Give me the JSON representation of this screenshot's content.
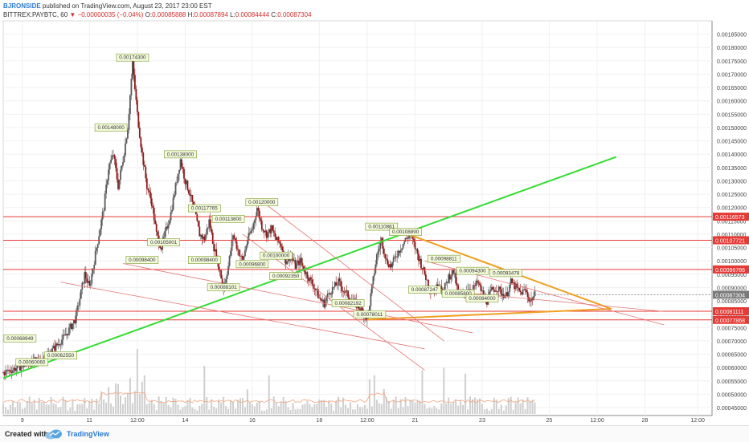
{
  "header": {
    "author": "BJRONSIDE",
    "published": "published on TradingView.com, August 23, 2017 23:00 EST",
    "symbol": "BITTREX:PAYBTC, 60",
    "change_arrow": "▼",
    "change": "−0.00000035 (−0.04%)",
    "ohlc": {
      "o_label": "O:",
      "o": "0.00085888",
      "h_label": "H:",
      "h": "0.00087894",
      "l_label": "L:",
      "l": "0.00084444",
      "c_label": "C:",
      "c": "0.00087304"
    }
  },
  "footer": {
    "created": "Created with",
    "brand": "TradingView"
  },
  "colors": {
    "up": "#58595b",
    "down": "#8b1a1a",
    "support": "#e53935",
    "trend": "#33dd33",
    "triangle": "#f0a020",
    "channel": "#e57373",
    "volume": "#cfcfcf",
    "volume_ma": "#f4a582",
    "label_bg": "#f4fbdd",
    "label_border": "#7a9a2a"
  },
  "chart_data": {
    "type": "line",
    "title": "",
    "xlabel": "",
    "ylabel": "",
    "ylim": [
      0.00042,
      0.0019
    ],
    "xlim": [
      0,
      148
    ],
    "price_scale": [
      "0.00185000",
      "0.00180000",
      "0.00175000",
      "0.00170000",
      "0.00165000",
      "0.00160000",
      "0.00155000",
      "0.00150000",
      "0.00145000",
      "0.00140000",
      "0.00135000",
      "0.00130000",
      "0.00125000",
      "0.00120000",
      "0.00115000",
      "0.00110000",
      "0.00105000",
      "0.00100000",
      "0.00095000",
      "0.00090000",
      "0.00085000",
      "0.00080000",
      "0.00075000",
      "0.00070000",
      "0.00065000",
      "0.00060000",
      "0.00055000",
      "0.00050000",
      "0.00045000"
    ],
    "x_ticks": [
      {
        "x": 4,
        "label": "9"
      },
      {
        "x": 18,
        "label": "11"
      },
      {
        "x": 28,
        "label": "12:00"
      },
      {
        "x": 38,
        "label": "14"
      },
      {
        "x": 52,
        "label": "16"
      },
      {
        "x": 66,
        "label": "18"
      },
      {
        "x": 76,
        "label": "12:00"
      },
      {
        "x": 86,
        "label": "21"
      },
      {
        "x": 100,
        "label": "23"
      },
      {
        "x": 114,
        "label": "25"
      },
      {
        "x": 124,
        "label": "12:00"
      },
      {
        "x": 134,
        "label": "28"
      },
      {
        "x": 145,
        "label": "12:00"
      }
    ],
    "price_path": [
      [
        0,
        0.00058
      ],
      [
        3,
        0.0006
      ],
      [
        6,
        0.00062
      ],
      [
        9,
        0.00064
      ],
      [
        11,
        0.00068
      ],
      [
        13,
        0.00072
      ],
      [
        15,
        0.00078
      ],
      [
        16,
        0.00086
      ],
      [
        17,
        0.00095
      ],
      [
        18,
        0.0009
      ],
      [
        19,
        0.001
      ],
      [
        20,
        0.0011
      ],
      [
        21,
        0.0012
      ],
      [
        22,
        0.00135
      ],
      [
        23,
        0.0014
      ],
      [
        24,
        0.00128
      ],
      [
        25,
        0.00138
      ],
      [
        26,
        0.0015
      ],
      [
        27,
        0.00174
      ],
      [
        28,
        0.00155
      ],
      [
        29,
        0.0014
      ],
      [
        30,
        0.00128
      ],
      [
        31,
        0.00122
      ],
      [
        32,
        0.0011
      ],
      [
        33,
        0.00105
      ],
      [
        35,
        0.00118
      ],
      [
        37,
        0.00138
      ],
      [
        38,
        0.0013
      ],
      [
        39,
        0.00125
      ],
      [
        40,
        0.00118
      ],
      [
        41,
        0.0011
      ],
      [
        42,
        0.00108
      ],
      [
        43,
        0.00115
      ],
      [
        44,
        0.00105
      ],
      [
        45,
        0.00098
      ],
      [
        46,
        0.0009
      ],
      [
        47,
        0.00098
      ],
      [
        48,
        0.0011
      ],
      [
        49,
        0.00104
      ],
      [
        50,
        0.001
      ],
      [
        51,
        0.00108
      ],
      [
        52,
        0.00112
      ],
      [
        53,
        0.0012
      ],
      [
        54,
        0.00113
      ],
      [
        55,
        0.0011
      ],
      [
        56,
        0.00112
      ],
      [
        57,
        0.00108
      ],
      [
        58,
        0.00106
      ],
      [
        59,
        0.001
      ],
      [
        60,
        0.00102
      ],
      [
        61,
        0.00098
      ],
      [
        62,
        0.001
      ],
      [
        63,
        0.00096
      ],
      [
        64,
        0.00093
      ],
      [
        65,
        0.0009
      ],
      [
        66,
        0.00086
      ],
      [
        67,
        0.00084
      ],
      [
        68,
        0.00088
      ],
      [
        69,
        0.0009
      ],
      [
        70,
        0.00092
      ],
      [
        71,
        0.00089
      ],
      [
        72,
        0.00087
      ],
      [
        73,
        0.00085
      ],
      [
        74,
        0.00083
      ],
      [
        75,
        0.00081
      ],
      [
        76,
        0.00078
      ],
      [
        77,
        0.0009
      ],
      [
        78,
        0.00102
      ],
      [
        79,
        0.00108
      ],
      [
        80,
        0.001
      ],
      [
        81,
        0.00098
      ],
      [
        82,
        0.00102
      ],
      [
        83,
        0.00105
      ],
      [
        84,
        0.00108
      ],
      [
        85,
        0.0011
      ],
      [
        86,
        0.00105
      ],
      [
        87,
        0.001
      ],
      [
        88,
        0.00095
      ],
      [
        89,
        0.0009
      ],
      [
        90,
        0.00088
      ],
      [
        91,
        0.00092
      ],
      [
        92,
        0.00089
      ],
      [
        93,
        0.00094
      ],
      [
        94,
        0.00096
      ],
      [
        95,
        0.00088
      ],
      [
        96,
        0.00087
      ],
      [
        97,
        0.0009
      ],
      [
        98,
        0.00089
      ],
      [
        99,
        0.00092
      ],
      [
        100,
        0.00088
      ],
      [
        101,
        0.00085
      ],
      [
        102,
        0.00089
      ],
      [
        103,
        0.0009
      ],
      [
        104,
        0.00088
      ],
      [
        105,
        0.00087
      ],
      [
        106,
        0.00092
      ],
      [
        107,
        0.0009
      ],
      [
        108,
        0.00088
      ],
      [
        109,
        0.00089
      ],
      [
        110,
        0.00085
      ],
      [
        111,
        0.00087304
      ]
    ],
    "horizontal_levels": [
      {
        "value": 0.00116573,
        "label": "0.00116573"
      },
      {
        "value": 0.00107721,
        "label": "0.00107721"
      },
      {
        "value": 0.00096786,
        "label": "0.00096786"
      },
      {
        "value": 0.00081111,
        "label": "0.00081111"
      },
      {
        "value": 0.00077868,
        "label": "0.00077868"
      }
    ],
    "last_price": {
      "value": 0.00087304,
      "label": "0.00087304"
    },
    "trend_line": {
      "x1": 0,
      "y1": 0.00056,
      "x2": 128,
      "y2": 0.00139
    },
    "triangle_lines": [
      {
        "x1": 83,
        "y1": 0.00111,
        "x2": 127,
        "y2": 0.00082
      },
      {
        "x1": 76,
        "y1": 0.00078,
        "x2": 127,
        "y2": 0.00082
      }
    ],
    "channel_lines": [
      {
        "x1": 25,
        "y1": 0.00099,
        "x2": 98,
        "y2": 0.00073
      },
      {
        "x1": 12,
        "y1": 0.00092,
        "x2": 88,
        "y2": 0.00067
      },
      {
        "x1": 55,
        "y1": 0.00121,
        "x2": 92,
        "y2": 0.0007
      },
      {
        "x1": 50,
        "y1": 0.0011,
        "x2": 88,
        "y2": 0.00059
      },
      {
        "x1": 85,
        "y1": 0.0009,
        "x2": 138,
        "y2": 0.00081
      },
      {
        "x1": 88,
        "y1": 0.001,
        "x2": 138,
        "y2": 0.00076
      }
    ],
    "price_labels": [
      {
        "x": 27,
        "y": 0.001743,
        "label": "0.00174300"
      },
      {
        "x": 22.5,
        "y": 0.00148,
        "label": "0.00148000"
      },
      {
        "x": 37,
        "y": 0.00138,
        "label": "0.00138000"
      },
      {
        "x": 42,
        "y": 0.00117765,
        "label": "0.00117765"
      },
      {
        "x": 54,
        "y": 0.0012,
        "label": "0.00120000"
      },
      {
        "x": 47,
        "y": 0.001138,
        "label": "0.00113800"
      },
      {
        "x": 33.5,
        "y": 0.00105001,
        "label": "0.00105001"
      },
      {
        "x": 29,
        "y": 0.000984,
        "label": "0.00098400"
      },
      {
        "x": 42,
        "y": 0.000984,
        "label": "0.00098400"
      },
      {
        "x": 57,
        "y": 0.001,
        "label": "0.00100000"
      },
      {
        "x": 52,
        "y": 0.000968,
        "label": "0.00096800"
      },
      {
        "x": 59,
        "y": 0.0009235,
        "label": "0.00092350"
      },
      {
        "x": 46,
        "y": 0.00088101,
        "label": "0.00088101"
      },
      {
        "x": 72,
        "y": 0.00082192,
        "label": "0.00082192"
      },
      {
        "x": 76.5,
        "y": 0.00078011,
        "label": "0.00078011"
      },
      {
        "x": 79,
        "y": 0.00110861,
        "label": "0.00110861"
      },
      {
        "x": 84,
        "y": 0.0010889,
        "label": "0.00108890"
      },
      {
        "x": 92,
        "y": 0.00098811,
        "label": "0.00098811"
      },
      {
        "x": 98,
        "y": 0.000943,
        "label": "0.00094300"
      },
      {
        "x": 105,
        "y": 0.00093478,
        "label": "0.00093478"
      },
      {
        "x": 88,
        "y": 0.00087247,
        "label": "0.00087247"
      },
      {
        "x": 95,
        "y": 0.000858,
        "label": "0.00085800"
      },
      {
        "x": 100,
        "y": 0.00084,
        "label": "0.00084000"
      },
      {
        "x": 3.5,
        "y": 0.00068949,
        "label": "0.00068949"
      },
      {
        "x": 12,
        "y": 0.0006255,
        "label": "0.00062550"
      },
      {
        "x": 6,
        "y": 0.0006006,
        "label": "0.00060060"
      }
    ]
  }
}
